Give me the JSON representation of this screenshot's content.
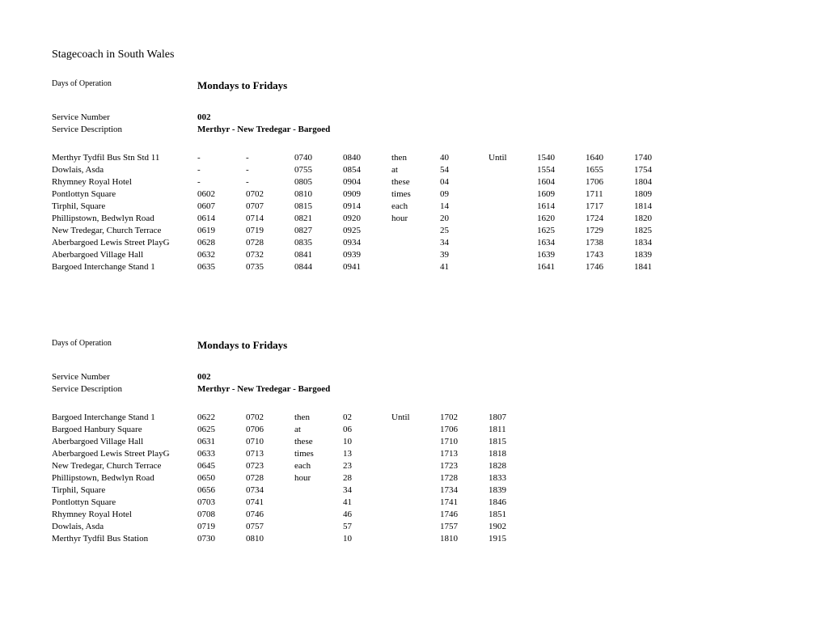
{
  "operator": "Stagecoach in South Wales",
  "sections": [
    {
      "daysLabel": "Days of Operation",
      "daysValue": "Mondays to Fridays",
      "serviceNumberLabel": "Service Number",
      "serviceNumberValue": "002",
      "serviceDescLabel": "Service Description",
      "serviceDescValue": "Merthyr - New Tredegar - Bargoed",
      "colCount": 11,
      "rows": [
        {
          "stop": "Merthyr Tydfil Bus Stn Std 11",
          "cells": [
            "-",
            "-",
            "0740",
            "0840",
            "then",
            "40",
            "Until",
            "1540",
            "1640",
            "1740"
          ]
        },
        {
          "stop": "Dowlais, Asda",
          "cells": [
            "-",
            "-",
            "0755",
            "0854",
            "at",
            "54",
            "",
            "1554",
            "1655",
            "1754"
          ]
        },
        {
          "stop": "Rhymney Royal Hotel",
          "cells": [
            "-",
            "-",
            "0805",
            "0904",
            "these",
            "04",
            "",
            "1604",
            "1706",
            "1804"
          ]
        },
        {
          "stop": "Pontlottyn Square",
          "cells": [
            "0602",
            "0702",
            "0810",
            "0909",
            "times",
            "09",
            "",
            "1609",
            "1711",
            "1809"
          ]
        },
        {
          "stop": "Tirphil, Square",
          "cells": [
            "0607",
            "0707",
            "0815",
            "0914",
            "each",
            "14",
            "",
            "1614",
            "1717",
            "1814"
          ]
        },
        {
          "stop": "Phillipstown, Bedwlyn Road",
          "cells": [
            "0614",
            "0714",
            "0821",
            "0920",
            "hour",
            "20",
            "",
            "1620",
            "1724",
            "1820"
          ]
        },
        {
          "stop": "New Tredegar, Church Terrace",
          "cells": [
            "0619",
            "0719",
            "0827",
            "0925",
            "",
            "25",
            "",
            "1625",
            "1729",
            "1825"
          ]
        },
        {
          "stop": "Aberbargoed Lewis Street PlayG",
          "cells": [
            "0628",
            "0728",
            "0835",
            "0934",
            "",
            "34",
            "",
            "1634",
            "1738",
            "1834"
          ]
        },
        {
          "stop": "Aberbargoed Village Hall",
          "cells": [
            "0632",
            "0732",
            "0841",
            "0939",
            "",
            "39",
            "",
            "1639",
            "1743",
            "1839"
          ]
        },
        {
          "stop": "Bargoed Interchange Stand 1",
          "cells": [
            "0635",
            "0735",
            "0844",
            "0941",
            "",
            "41",
            "",
            "1641",
            "1746",
            "1841"
          ]
        }
      ]
    },
    {
      "daysLabel": "Days of Operation",
      "daysValue": "Mondays to Fridays",
      "serviceNumberLabel": "Service Number",
      "serviceNumberValue": "002",
      "serviceDescLabel": "Service Description",
      "serviceDescValue": "Merthyr - New Tredegar - Bargoed",
      "colCount": 8,
      "rows": [
        {
          "stop": "Bargoed Interchange Stand 1",
          "cells": [
            "0622",
            "0702",
            "then",
            "02",
            "Until",
            "1702",
            "1807"
          ]
        },
        {
          "stop": "Bargoed Hanbury Square",
          "cells": [
            "0625",
            "0706",
            "at",
            "06",
            "",
            "1706",
            "1811"
          ]
        },
        {
          "stop": "Aberbargoed Village Hall",
          "cells": [
            "0631",
            "0710",
            "these",
            "10",
            "",
            "1710",
            "1815"
          ]
        },
        {
          "stop": "Aberbargoed Lewis Street PlayG",
          "cells": [
            "0633",
            "0713",
            "times",
            "13",
            "",
            "1713",
            "1818"
          ]
        },
        {
          "stop": "New Tredegar, Church Terrace",
          "cells": [
            "0645",
            "0723",
            "each",
            "23",
            "",
            "1723",
            "1828"
          ]
        },
        {
          "stop": "Phillipstown, Bedwlyn Road",
          "cells": [
            "0650",
            "0728",
            "hour",
            "28",
            "",
            "1728",
            "1833"
          ]
        },
        {
          "stop": "Tirphil, Square",
          "cells": [
            "0656",
            "0734",
            "",
            "34",
            "",
            "1734",
            "1839"
          ]
        },
        {
          "stop": "Pontlottyn Square",
          "cells": [
            "0703",
            "0741",
            "",
            "41",
            "",
            "1741",
            "1846"
          ]
        },
        {
          "stop": "Rhymney Royal Hotel",
          "cells": [
            "0708",
            "0746",
            "",
            "46",
            "",
            "1746",
            "1851"
          ]
        },
        {
          "stop": "Dowlais, Asda",
          "cells": [
            "0719",
            "0757",
            "",
            "57",
            "",
            "1757",
            "1902"
          ]
        },
        {
          "stop": "Merthyr Tydfil Bus Station",
          "cells": [
            "0730",
            "0810",
            "",
            "10",
            "",
            "1810",
            "1915"
          ]
        }
      ]
    }
  ]
}
